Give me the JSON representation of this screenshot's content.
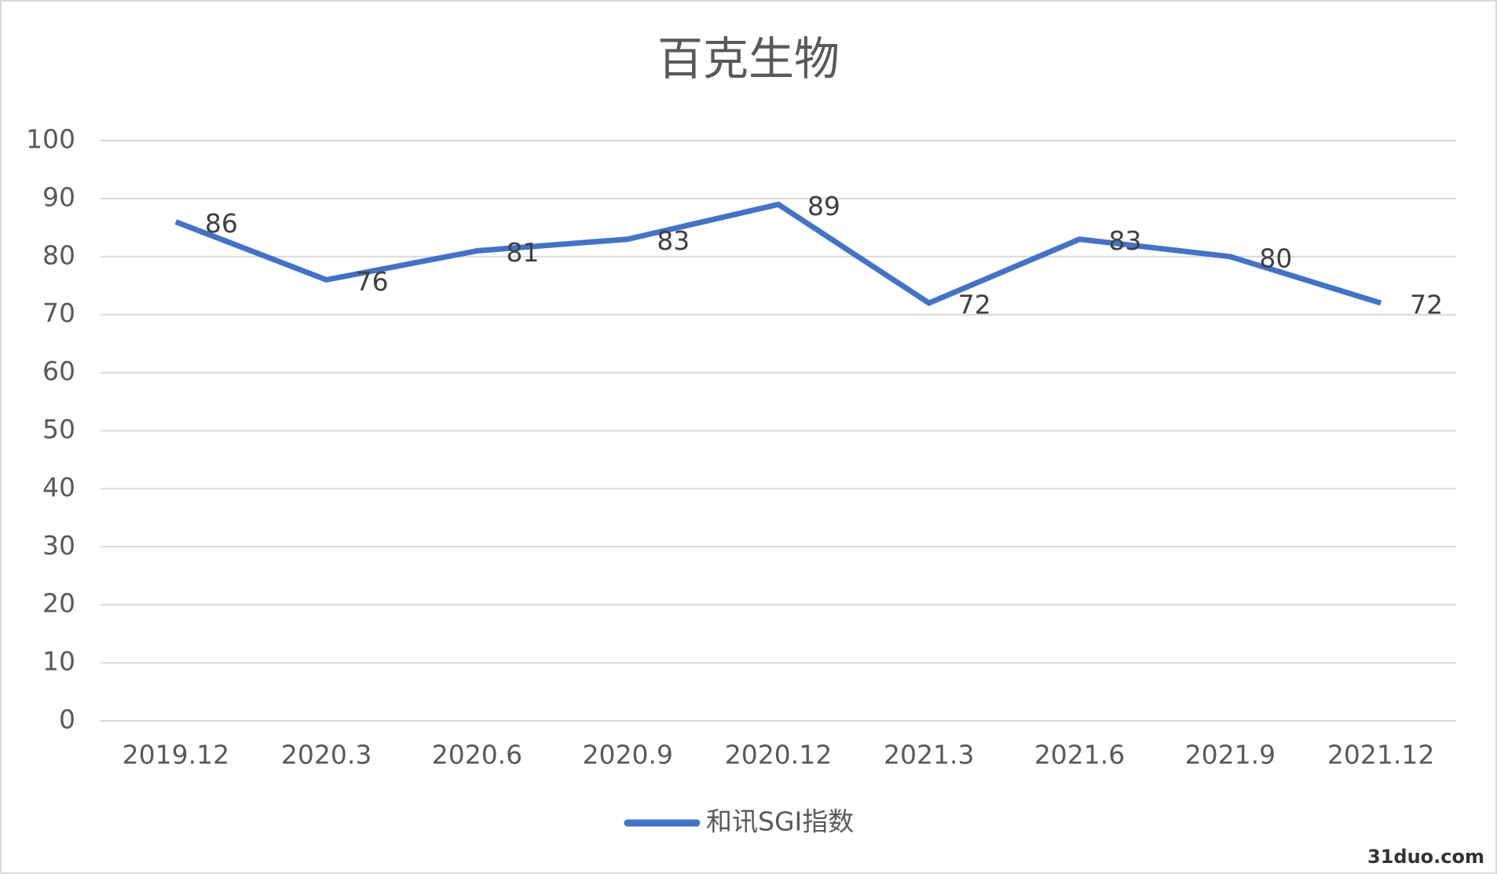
{
  "chart_data": {
    "type": "line",
    "title": "百克生物",
    "categories": [
      "2019.12",
      "2020.3",
      "2020.6",
      "2020.9",
      "2020.12",
      "2021.3",
      "2021.6",
      "2021.9",
      "2021.12"
    ],
    "series": [
      {
        "name": "和讯SGI指数",
        "color": "#4472c4",
        "values": [
          86,
          76,
          81,
          83,
          89,
          72,
          83,
          80,
          72
        ]
      }
    ],
    "ylim": [
      0,
      100
    ],
    "yticks": [
      0,
      10,
      20,
      30,
      40,
      50,
      60,
      70,
      80,
      90,
      100
    ],
    "grid": true,
    "legend": "bottom",
    "data_labels": true
  },
  "watermark": "31duo.com"
}
